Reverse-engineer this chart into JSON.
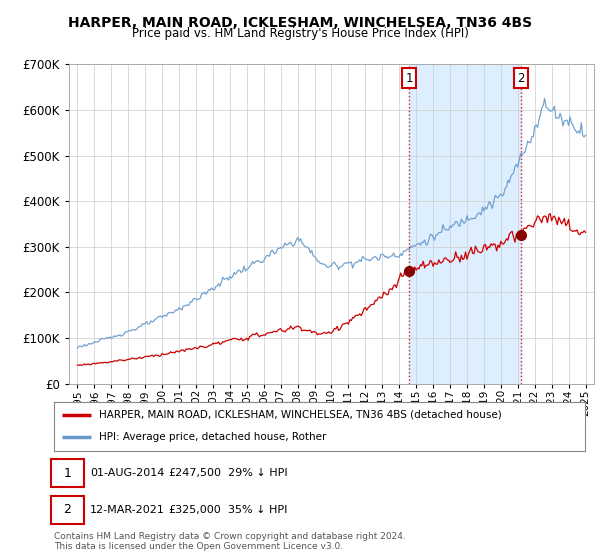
{
  "title": "HARPER, MAIN ROAD, ICKLESHAM, WINCHELSEA, TN36 4BS",
  "subtitle": "Price paid vs. HM Land Registry's House Price Index (HPI)",
  "hpi_label": "HPI: Average price, detached house, Rother",
  "property_label": "HARPER, MAIN ROAD, ICKLESHAM, WINCHELSEA, TN36 4BS (detached house)",
  "copyright": "Contains HM Land Registry data © Crown copyright and database right 2024.\nThis data is licensed under the Open Government Licence v3.0.",
  "sale1_year": 2014.583,
  "sale1_price": 247500,
  "sale2_year": 2021.19,
  "sale2_price": 325000,
  "property_color": "#cc0000",
  "hpi_color": "#6699cc",
  "shading_color": "#ddeeff",
  "background_color": "#ffffff",
  "grid_color": "#cccccc",
  "ylim": [
    0,
    700000
  ],
  "xlim_start": 1994.5,
  "xlim_end": 2025.5
}
